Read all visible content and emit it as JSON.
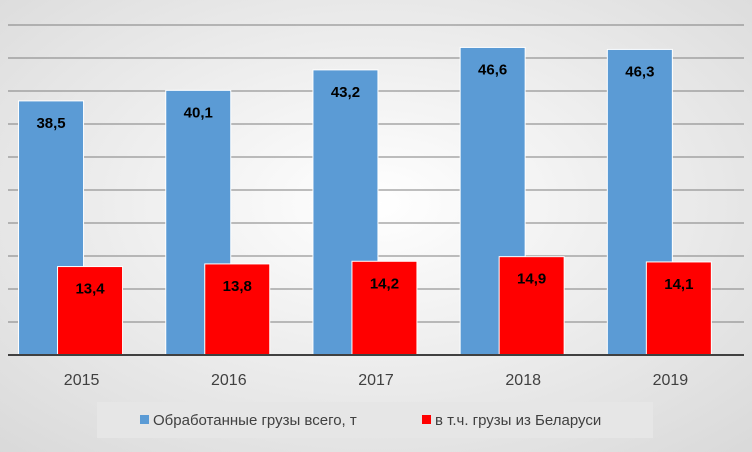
{
  "chart_data": {
    "type": "bar",
    "categories": [
      "2015",
      "2016",
      "2017",
      "2018",
      "2019"
    ],
    "series": [
      {
        "name": "Обработанные грузы всего, т",
        "values": [
          38.5,
          40.1,
          43.2,
          46.6,
          46.3
        ],
        "labels": [
          "38,5",
          "40,1",
          "43,2",
          "46,6",
          "46,3"
        ],
        "color": "#5B9BD5"
      },
      {
        "name": "в т.ч. грузы из Беларуси",
        "values": [
          13.4,
          13.8,
          14.2,
          14.9,
          14.1
        ],
        "labels": [
          "13,4",
          "13,8",
          "14,2",
          "14,9",
          "14,1"
        ],
        "color": "#FF0000"
      }
    ],
    "ylim": [
      0,
      50
    ],
    "grid": true,
    "legend_position": "bottom",
    "colors": {
      "background_gradient": [
        "#FFFFFF",
        "#D9D9D9"
      ],
      "gridline": "#7F7F7F",
      "axis": "#404040",
      "legend_box": "#E6E6E6"
    }
  }
}
